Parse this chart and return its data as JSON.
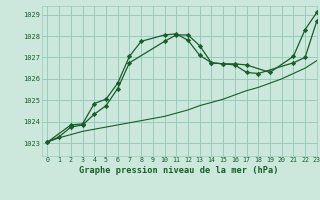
{
  "title": "Graphe pression niveau de la mer (hPa)",
  "bg_color": "#cce8dc",
  "grid_color": "#99ccbb",
  "line_color": "#1a5c2a",
  "xlim": [
    -0.5,
    23
  ],
  "ylim": [
    1022.4,
    1029.4
  ],
  "yticks": [
    1023,
    1024,
    1025,
    1026,
    1027,
    1028,
    1029
  ],
  "xticks": [
    0,
    1,
    2,
    3,
    4,
    5,
    6,
    7,
    8,
    9,
    10,
    11,
    12,
    13,
    14,
    15,
    16,
    17,
    18,
    19,
    20,
    21,
    22,
    23
  ],
  "line1_x": [
    0,
    1,
    2,
    3,
    4,
    5,
    6,
    7,
    10,
    11,
    12,
    13,
    14,
    15,
    16,
    17,
    18,
    21,
    22,
    23
  ],
  "line1_y": [
    1023.05,
    1023.3,
    1023.75,
    1023.85,
    1024.35,
    1024.75,
    1025.55,
    1026.75,
    1027.75,
    1028.05,
    1028.05,
    1027.55,
    1026.75,
    1026.7,
    1026.65,
    1026.3,
    1026.25,
    1026.75,
    1027.0,
    1028.7
  ],
  "line2_x": [
    0,
    2,
    3,
    4,
    5,
    6,
    7,
    8,
    10,
    11,
    12,
    13,
    14,
    15,
    16,
    17,
    19,
    21,
    22,
    23
  ],
  "line2_y": [
    1023.05,
    1023.85,
    1023.9,
    1024.85,
    1025.05,
    1025.8,
    1027.05,
    1027.75,
    1028.05,
    1028.1,
    1027.8,
    1027.1,
    1026.75,
    1026.7,
    1026.7,
    1026.65,
    1026.3,
    1027.05,
    1028.3,
    1029.1
  ],
  "line3_x": [
    0,
    1,
    2,
    3,
    4,
    5,
    6,
    7,
    8,
    9,
    10,
    11,
    12,
    13,
    14,
    15,
    16,
    17,
    18,
    19,
    20,
    21,
    22,
    23
  ],
  "line3_y": [
    1023.05,
    1023.25,
    1023.4,
    1023.55,
    1023.65,
    1023.75,
    1023.85,
    1023.95,
    1024.05,
    1024.15,
    1024.25,
    1024.4,
    1024.55,
    1024.75,
    1024.9,
    1025.05,
    1025.25,
    1025.45,
    1025.6,
    1025.8,
    1026.0,
    1026.25,
    1026.5,
    1026.85
  ]
}
